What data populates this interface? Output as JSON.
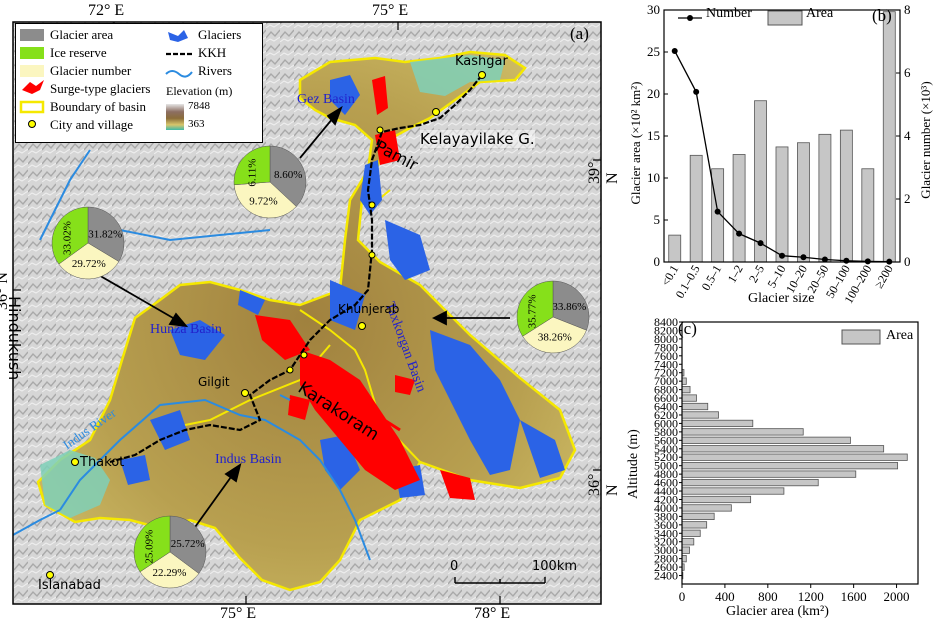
{
  "map": {
    "panel_label": "(a)",
    "grid": {
      "top": [
        "72° E",
        "75° E"
      ],
      "bottom": [
        "75° E",
        "78° E"
      ],
      "left": [
        "36° N"
      ],
      "right": [
        "39° N",
        "36° N"
      ]
    },
    "legend": {
      "left": [
        "Glacier area",
        "Ice reserve",
        "Glacier number",
        "Surge-type glaciers",
        "Boundary of basin",
        "City and village"
      ],
      "right": [
        "Glaciers",
        "KKH",
        "Rivers"
      ],
      "elevation_title": "Elevation (m)",
      "elevation_max": "7848",
      "elevation_min": "363"
    },
    "places": {
      "kashgar": "Kashgar",
      "kelayayilake": "Kelayayilake G.",
      "pamir": "Pamir",
      "gez": "Gez Basin",
      "taxkorgan": "Taxkorgan Basin",
      "khunjerab": "Khunjerab",
      "hunza": "Hunza Basin",
      "gilgit": "Gilgit",
      "karakoram": "Karakoram",
      "indus_river": "Indus River",
      "thakot": "Thakot",
      "indus_basin": "Indus Basin",
      "islanabad": "Islanabad",
      "hindukush": "Hindukush"
    },
    "scale": {
      "start": "0",
      "end": "100km"
    },
    "pies": [
      {
        "basin": "Gez",
        "area": "8.60%",
        "ice": "6.11%",
        "number": "9.72%",
        "fractions": [
          0.3694,
          0.2625,
          0.3681
        ]
      },
      {
        "basin": "Hunza",
        "area": "31.82%",
        "ice": "33.02%",
        "number": "29.72%",
        "fractions": [
          0.3363,
          0.3496,
          0.3141
        ]
      },
      {
        "basin": "Taxkorgan",
        "area": "33.86%",
        "ice": "35.77%",
        "number": "38.26%",
        "fractions": [
          0.31,
          0.34,
          0.35
        ]
      },
      {
        "basin": "Indus",
        "area": "25.72%",
        "ice": "25.09%",
        "number": "22.29%",
        "fractions": [
          0.352,
          0.343,
          0.305
        ]
      }
    ],
    "colors": {
      "area": "#8c8c8c",
      "ice": "#86e01a",
      "number": "#fbf6c0",
      "surge": "#ff0000",
      "glacier": "#2b63e6",
      "boundary": "#f5e800",
      "river": "#2b8be0"
    }
  },
  "chart_data": [
    {
      "type": "bar",
      "panel": "(b)",
      "categories": [
        "<0.1",
        "0.1–0.5",
        "0.5–1",
        "1–2",
        "2–5",
        "5–10",
        "10–20",
        "20–50",
        "50–100",
        "100–200",
        "≥200"
      ],
      "series": [
        {
          "name": "Area",
          "axis": "left",
          "values": [
            3.2,
            12.7,
            11.1,
            12.8,
            19.2,
            13.7,
            14.2,
            15.2,
            15.7,
            11.1,
            29.8
          ]
        },
        {
          "name": "Number",
          "axis": "right",
          "values": [
            6.7,
            5.4,
            1.6,
            0.9,
            0.6,
            0.2,
            0.15,
            0.08,
            0.04,
            0.02,
            0.01
          ]
        }
      ],
      "xlabel": "Glacier size",
      "ylabel": "Glacier area (×10² km²)",
      "y2label": "Glacier number (×10³)",
      "ylim": [
        0,
        30
      ],
      "y2lim": [
        0,
        8
      ],
      "yticks": [
        "0",
        "5",
        "10",
        "15",
        "20",
        "25",
        "30"
      ],
      "y2ticks": [
        "0",
        "2",
        "4",
        "6",
        "8"
      ],
      "legend": [
        "Number",
        "Area"
      ]
    },
    {
      "type": "bar",
      "orientation": "horizontal",
      "panel": "(c)",
      "y": [
        2400,
        2600,
        2800,
        3000,
        3200,
        3400,
        3600,
        3800,
        4000,
        4200,
        4400,
        4600,
        4800,
        5000,
        5200,
        5400,
        5600,
        5800,
        6000,
        6200,
        6400,
        6600,
        6800,
        7000,
        7200
      ],
      "values": [
        8,
        20,
        40,
        70,
        110,
        170,
        230,
        300,
        460,
        640,
        950,
        1270,
        1620,
        2010,
        2100,
        1880,
        1570,
        1130,
        660,
        340,
        240,
        135,
        75,
        40,
        18
      ],
      "series_name": "Area",
      "xlabel": "Glacier area (km²)",
      "ylabel": "Altitude (m)",
      "xlim": [
        0,
        2200
      ],
      "ylim": [
        2200,
        8400
      ],
      "xticks": [
        "0",
        "400",
        "800",
        "1200",
        "1600",
        "2000"
      ],
      "yticks": [
        "2400",
        "2800",
        "3200",
        "3600",
        "4000",
        "4400",
        "4800",
        "5200",
        "5600",
        "6000",
        "6400",
        "6800",
        "7200",
        "7600",
        "8000",
        "8400"
      ],
      "ytick_labels_all": [
        "2400",
        "2600",
        "2800",
        "3000",
        "3200",
        "3400",
        "3600",
        "3800",
        "4000",
        "4200",
        "4400",
        "4600",
        "4800",
        "5000",
        "5200",
        "5400",
        "5600",
        "5800",
        "6000",
        "6200",
        "6400",
        "6600",
        "6800",
        "7000",
        "7200",
        "7400",
        "7600",
        "7800",
        "8000",
        "8200",
        "8400"
      ],
      "legend": [
        "Area"
      ]
    }
  ]
}
